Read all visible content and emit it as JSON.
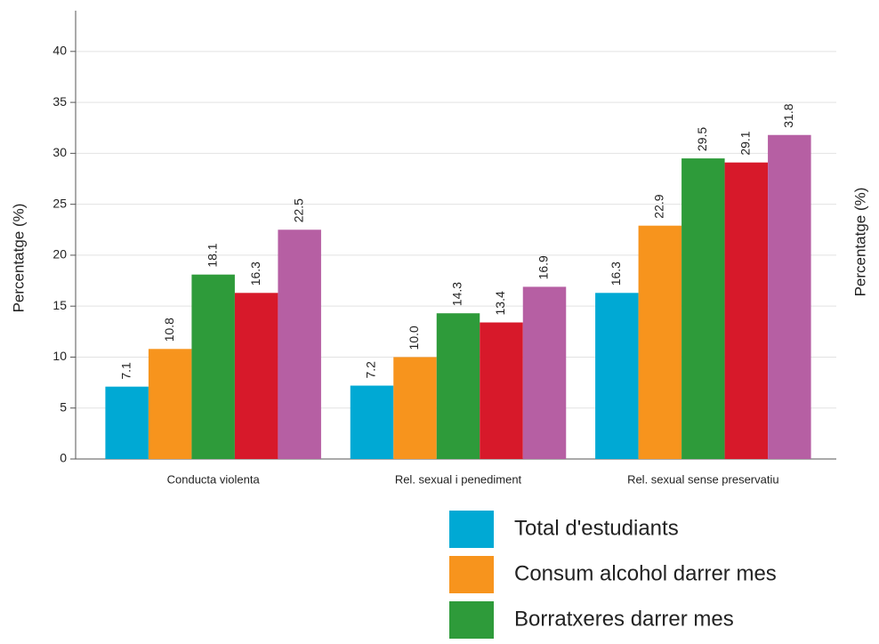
{
  "chart_data": {
    "type": "bar",
    "ylabel": "Percentatge (%)",
    "y2label": "Percentatge (%)",
    "categories": [
      "Conducta violenta",
      "Rel. sexual i penediment",
      "Rel. sexual sense preservatiu"
    ],
    "series": [
      {
        "name": "Total d'estudiants",
        "color": "#00a9d4",
        "values": [
          7.1,
          7.2,
          16.3
        ],
        "value_labels": [
          "7.1",
          "7.2",
          "16.3"
        ]
      },
      {
        "name": "Consum alcohol darrer mes",
        "color": "#f7941d",
        "values": [
          10.8,
          10.0,
          22.9
        ],
        "value_labels": [
          "10.8",
          "10.0",
          "22.9"
        ]
      },
      {
        "name": "Borratxeres darrer mes",
        "color": "#2e9b3a",
        "values": [
          18.1,
          14.3,
          29.5
        ],
        "value_labels": [
          "18.1",
          "14.3",
          "29.5"
        ]
      },
      {
        "color": "#d7192a",
        "values": [
          16.3,
          13.4,
          29.1
        ],
        "value_labels": [
          "16.3",
          "13.4",
          "29.1"
        ]
      },
      {
        "color": "#b65fa3",
        "values": [
          22.5,
          16.9,
          31.8
        ],
        "value_labels": [
          "22.5",
          "16.9",
          "31.8"
        ]
      }
    ],
    "ylim": [
      0,
      44
    ],
    "yticks": [
      0,
      5,
      10,
      15,
      20,
      25,
      30,
      35,
      40
    ],
    "grid": true
  }
}
